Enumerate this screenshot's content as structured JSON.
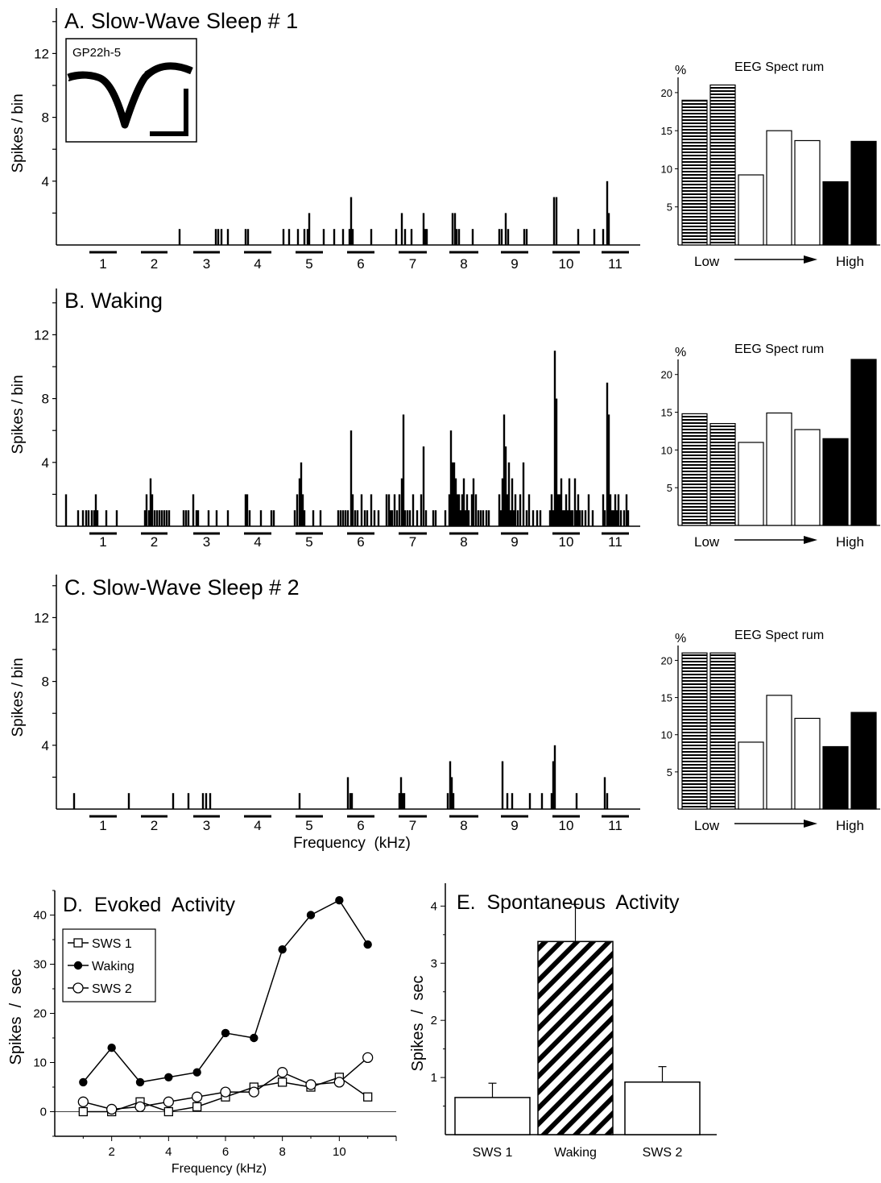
{
  "psth_panels": {
    "ylabel": "Spikes / bin",
    "yticks": [
      "4",
      "8",
      "12"
    ],
    "xlabel": "Frequency  (kHz)",
    "freq_labels": [
      "1",
      "2",
      "3",
      "4",
      "5",
      "6",
      "7",
      "8",
      "9",
      "10",
      "11"
    ]
  },
  "inset": {
    "label": "GP22h-5"
  },
  "eeg": {
    "title": "EEG  Spect rum",
    "pct": "%",
    "yticks": [
      "5",
      "10",
      "15",
      "20"
    ],
    "low": "Low",
    "high": "High"
  },
  "chart_data": [
    {
      "type": "bar",
      "title": "A. Slow-Wave Sleep # 1",
      "ylabel": "Spikes / bin",
      "ylim": [
        0,
        14
      ],
      "categories": [
        "1",
        "2",
        "3",
        "4",
        "5",
        "6",
        "7",
        "8",
        "9",
        "10",
        "11"
      ],
      "spike_counts": [
        [
          223,
          1
        ],
        [
          268,
          1
        ],
        [
          271,
          1
        ],
        [
          275,
          1
        ],
        [
          283,
          1
        ],
        [
          305,
          1
        ],
        [
          308,
          1
        ],
        [
          352,
          1
        ],
        [
          359,
          1
        ],
        [
          370,
          1
        ],
        [
          378,
          1
        ],
        [
          382,
          1
        ],
        [
          384,
          2
        ],
        [
          402,
          1
        ],
        [
          415,
          1
        ],
        [
          426,
          1
        ],
        [
          434,
          1
        ],
        [
          436,
          3
        ],
        [
          438,
          1
        ],
        [
          461,
          1
        ],
        [
          492,
          1
        ],
        [
          499,
          2
        ],
        [
          503,
          1
        ],
        [
          511,
          1
        ],
        [
          526,
          2
        ],
        [
          528,
          1
        ],
        [
          530,
          1
        ],
        [
          562,
          2
        ],
        [
          565,
          2
        ],
        [
          567,
          1
        ],
        [
          570,
          1
        ],
        [
          587,
          1
        ],
        [
          620,
          1
        ],
        [
          623,
          1
        ],
        [
          628,
          2
        ],
        [
          631,
          1
        ],
        [
          651,
          1
        ],
        [
          654,
          1
        ],
        [
          688,
          3
        ],
        [
          691,
          3
        ],
        [
          718,
          1
        ],
        [
          738,
          1
        ],
        [
          749,
          1
        ],
        [
          754,
          4
        ],
        [
          756,
          2
        ]
      ]
    },
    {
      "type": "bar",
      "ylabel": "%",
      "ylim": [
        0,
        22
      ],
      "categories": [
        "1",
        "2",
        "3",
        "4",
        "5",
        "6",
        "7"
      ],
      "values": [
        19,
        21,
        9.2,
        15,
        13.7,
        8.3,
        13.6
      ],
      "fills": [
        "hatch",
        "hatch",
        "white",
        "white",
        "white",
        "black",
        "black"
      ]
    },
    {
      "type": "bar",
      "title": "B. Waking",
      "ylabel": "Spikes / bin",
      "ylim": [
        0,
        14
      ],
      "categories": [
        "1",
        "2",
        "3",
        "4",
        "5",
        "6",
        "7",
        "8",
        "9",
        "10",
        "11"
      ],
      "spike_counts": [
        [
          82,
          2
        ],
        [
          97,
          1
        ],
        [
          103,
          1
        ],
        [
          107,
          1
        ],
        [
          110,
          1
        ],
        [
          114,
          1
        ],
        [
          117,
          1
        ],
        [
          119,
          2
        ],
        [
          121,
          1
        ],
        [
          132,
          1
        ],
        [
          145,
          1
        ],
        [
          180,
          1
        ],
        [
          182,
          2
        ],
        [
          185,
          1
        ],
        [
          187,
          3
        ],
        [
          189,
          2
        ],
        [
          192,
          1
        ],
        [
          195,
          1
        ],
        [
          198,
          1
        ],
        [
          201,
          1
        ],
        [
          204,
          1
        ],
        [
          207,
          1
        ],
        [
          210,
          1
        ],
        [
          228,
          1
        ],
        [
          231,
          1
        ],
        [
          234,
          1
        ],
        [
          240,
          2
        ],
        [
          244,
          1
        ],
        [
          246,
          1
        ],
        [
          259,
          1
        ],
        [
          269,
          1
        ],
        [
          283,
          1
        ],
        [
          305,
          2
        ],
        [
          307,
          2
        ],
        [
          310,
          1
        ],
        [
          324,
          1
        ],
        [
          337,
          1
        ],
        [
          340,
          1
        ],
        [
          366,
          1
        ],
        [
          369,
          2
        ],
        [
          372,
          3
        ],
        [
          374,
          4
        ],
        [
          376,
          2
        ],
        [
          378,
          1
        ],
        [
          389,
          1
        ],
        [
          398,
          1
        ],
        [
          420,
          1
        ],
        [
          423,
          1
        ],
        [
          426,
          1
        ],
        [
          429,
          1
        ],
        [
          432,
          1
        ],
        [
          436,
          6
        ],
        [
          438,
          2
        ],
        [
          441,
          1
        ],
        [
          444,
          1
        ],
        [
          449,
          2
        ],
        [
          453,
          1
        ],
        [
          456,
          1
        ],
        [
          461,
          2
        ],
        [
          465,
          1
        ],
        [
          470,
          1
        ],
        [
          480,
          2
        ],
        [
          483,
          2
        ],
        [
          485,
          1
        ],
        [
          487,
          1
        ],
        [
          490,
          2
        ],
        [
          493,
          1
        ],
        [
          496,
          2
        ],
        [
          499,
          3
        ],
        [
          501,
          7
        ],
        [
          503,
          1
        ],
        [
          506,
          1
        ],
        [
          509,
          1
        ],
        [
          513,
          2
        ],
        [
          518,
          1
        ],
        [
          523,
          2
        ],
        [
          526,
          5
        ],
        [
          529,
          1
        ],
        [
          538,
          1
        ],
        [
          541,
          1
        ],
        [
          553,
          1
        ],
        [
          558,
          2
        ],
        [
          560,
          6
        ],
        [
          562,
          4
        ],
        [
          564,
          4
        ],
        [
          566,
          3
        ],
        [
          568,
          2
        ],
        [
          570,
          2
        ],
        [
          572,
          1
        ],
        [
          574,
          2
        ],
        [
          576,
          3
        ],
        [
          578,
          1
        ],
        [
          580,
          2
        ],
        [
          582,
          1
        ],
        [
          586,
          2
        ],
        [
          588,
          3
        ],
        [
          591,
          2
        ],
        [
          594,
          1
        ],
        [
          597,
          1
        ],
        [
          600,
          1
        ],
        [
          604,
          1
        ],
        [
          607,
          1
        ],
        [
          620,
          2
        ],
        [
          622,
          1
        ],
        [
          624,
          3
        ],
        [
          626,
          7
        ],
        [
          628,
          5
        ],
        [
          630,
          2
        ],
        [
          632,
          4
        ],
        [
          634,
          1
        ],
        [
          636,
          3
        ],
        [
          638,
          1
        ],
        [
          640,
          2
        ],
        [
          643,
          1
        ],
        [
          646,
          2
        ],
        [
          650,
          4
        ],
        [
          654,
          1
        ],
        [
          657,
          2
        ],
        [
          662,
          1
        ],
        [
          667,
          1
        ],
        [
          671,
          1
        ],
        [
          683,
          1
        ],
        [
          685,
          2
        ],
        [
          687,
          1
        ],
        [
          689,
          11
        ],
        [
          691,
          8
        ],
        [
          693,
          2
        ],
        [
          695,
          2
        ],
        [
          697,
          3
        ],
        [
          699,
          1
        ],
        [
          701,
          1
        ],
        [
          703,
          2
        ],
        [
          705,
          1
        ],
        [
          707,
          3
        ],
        [
          709,
          1
        ],
        [
          711,
          1
        ],
        [
          714,
          3
        ],
        [
          716,
          1
        ],
        [
          718,
          2
        ],
        [
          720,
          1
        ],
        [
          723,
          1
        ],
        [
          727,
          1
        ],
        [
          731,
          2
        ],
        [
          736,
          1
        ],
        [
          749,
          2
        ],
        [
          751,
          1
        ],
        [
          754,
          9
        ],
        [
          756,
          7
        ],
        [
          758,
          2
        ],
        [
          760,
          1
        ],
        [
          762,
          1
        ],
        [
          764,
          2
        ],
        [
          766,
          1
        ],
        [
          768,
          2
        ],
        [
          771,
          1
        ],
        [
          775,
          1
        ],
        [
          778,
          2
        ],
        [
          780,
          1
        ]
      ]
    },
    {
      "type": "bar",
      "ylabel": "%",
      "ylim": [
        0,
        22
      ],
      "categories": [
        "1",
        "2",
        "3",
        "4",
        "5",
        "6",
        "7"
      ],
      "values": [
        14.8,
        13.5,
        11,
        14.9,
        12.7,
        11.5,
        22
      ],
      "fills": [
        "hatch",
        "hatch",
        "white",
        "white",
        "white",
        "black",
        "black"
      ]
    },
    {
      "type": "bar",
      "title": "C. Slow-Wave Sleep # 2",
      "ylabel": "Spikes / bin",
      "xlabel": "Frequency  (kHz)",
      "ylim": [
        0,
        14
      ],
      "categories": [
        "1",
        "2",
        "3",
        "4",
        "5",
        "6",
        "7",
        "8",
        "9",
        "10",
        "11"
      ],
      "spike_counts": [
        [
          92,
          1
        ],
        [
          160,
          1
        ],
        [
          215,
          1
        ],
        [
          234,
          1
        ],
        [
          252,
          1
        ],
        [
          256,
          1
        ],
        [
          261,
          1
        ],
        [
          372,
          1
        ],
        [
          432,
          2
        ],
        [
          435,
          1
        ],
        [
          437,
          1
        ],
        [
          496,
          1
        ],
        [
          498,
          2
        ],
        [
          500,
          1
        ],
        [
          502,
          1
        ],
        [
          556,
          1
        ],
        [
          559,
          3
        ],
        [
          561,
          2
        ],
        [
          563,
          1
        ],
        [
          624,
          3
        ],
        [
          630,
          1
        ],
        [
          636,
          1
        ],
        [
          658,
          1
        ],
        [
          673,
          1
        ],
        [
          685,
          1
        ],
        [
          687,
          3
        ],
        [
          689,
          4
        ],
        [
          716,
          1
        ],
        [
          751,
          2
        ],
        [
          754,
          1
        ]
      ]
    },
    {
      "type": "bar",
      "ylabel": "%",
      "ylim": [
        0,
        22
      ],
      "categories": [
        "1",
        "2",
        "3",
        "4",
        "5",
        "6",
        "7"
      ],
      "values": [
        21,
        21,
        9,
        15.3,
        12.2,
        8.4,
        13
      ],
      "fills": [
        "hatch",
        "hatch",
        "white",
        "white",
        "white",
        "black",
        "black"
      ]
    },
    {
      "type": "line",
      "title": "D.  Evoked  Activity",
      "xlabel": "Frequency (kHz)",
      "ylabel": "Spikes  /  sec",
      "xlim": [
        0,
        12
      ],
      "ylim": [
        -5,
        45
      ],
      "xticks": [
        2,
        4,
        6,
        8,
        10
      ],
      "yticks": [
        0,
        10,
        20,
        30,
        40
      ],
      "legend_position": "top-left",
      "x": [
        1,
        2,
        3,
        4,
        5,
        6,
        7,
        8,
        9,
        10,
        11
      ],
      "series": [
        {
          "name": "SWS 1",
          "marker": "open-square",
          "values": [
            0,
            0,
            2,
            0,
            1,
            3,
            5,
            6,
            5,
            7,
            3
          ]
        },
        {
          "name": "Waking",
          "marker": "filled-circle",
          "values": [
            6,
            13,
            6,
            7,
            8,
            16,
            15,
            33,
            40,
            43,
            34
          ]
        },
        {
          "name": "SWS 2",
          "marker": "open-circle",
          "values": [
            2,
            0.5,
            1,
            2,
            3,
            4,
            4,
            8,
            5.5,
            6,
            11
          ]
        }
      ]
    },
    {
      "type": "bar",
      "title": "E.  Spontaneous  Activity",
      "ylabel": "Spikes  /  sec",
      "ylim": [
        0,
        4.4
      ],
      "yticks": [
        1,
        2,
        3,
        4
      ],
      "categories": [
        "SWS 1",
        "Waking",
        "SWS 2"
      ],
      "values": [
        0.65,
        3.38,
        0.92
      ],
      "errors": [
        0.25,
        0.65,
        0.27
      ],
      "fills": [
        "white",
        "hatch",
        "white"
      ]
    }
  ]
}
